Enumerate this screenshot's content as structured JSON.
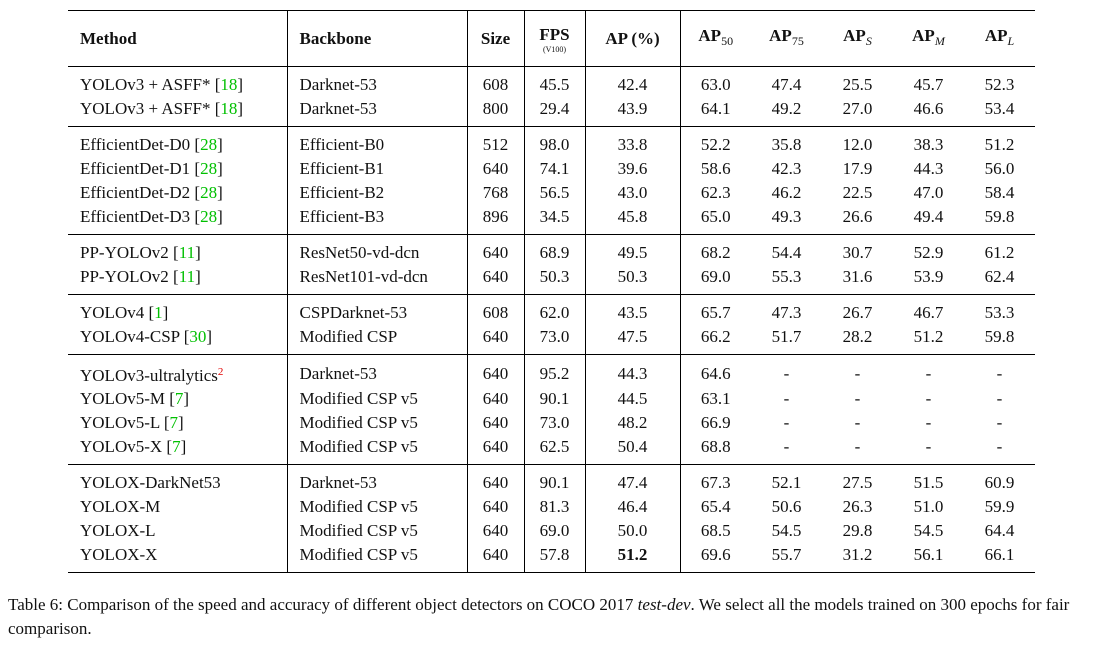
{
  "table": {
    "header": [
      {
        "text": "Method"
      },
      {
        "text": "Backbone"
      },
      {
        "text": "Size"
      },
      {
        "text": "FPS",
        "note": "(V100)"
      },
      {
        "text": "AP (%)"
      },
      {
        "text": "AP",
        "sub": "50"
      },
      {
        "text": "AP",
        "sub": "75"
      },
      {
        "text": "AP",
        "sub": "S",
        "sub_italic": true
      },
      {
        "text": "AP",
        "sub": "M",
        "sub_italic": true
      },
      {
        "text": "AP",
        "sub": "L",
        "sub_italic": true
      }
    ],
    "groups": [
      [
        {
          "method": [
            {
              "text": "YOLOv3 + ASFF* ["
            },
            {
              "text": "18",
              "kind": "cite"
            },
            {
              "text": "]"
            }
          ],
          "cells": [
            "Darknet-53",
            "608",
            "45.5",
            "42.4",
            "63.0",
            "47.4",
            "25.5",
            "45.7",
            "52.3"
          ]
        },
        {
          "method": [
            {
              "text": "YOLOv3 + ASFF* ["
            },
            {
              "text": "18",
              "kind": "cite"
            },
            {
              "text": "]"
            }
          ],
          "cells": [
            "Darknet-53",
            "800",
            "29.4",
            "43.9",
            "64.1",
            "49.2",
            "27.0",
            "46.6",
            "53.4"
          ]
        }
      ],
      [
        {
          "method": [
            {
              "text": "EfficientDet-D0 ["
            },
            {
              "text": "28",
              "kind": "cite"
            },
            {
              "text": "]"
            }
          ],
          "cells": [
            "Efficient-B0",
            "512",
            "98.0",
            "33.8",
            "52.2",
            "35.8",
            "12.0",
            "38.3",
            "51.2"
          ]
        },
        {
          "method": [
            {
              "text": "EfficientDet-D1 ["
            },
            {
              "text": "28",
              "kind": "cite"
            },
            {
              "text": "]"
            }
          ],
          "cells": [
            "Efficient-B1",
            "640",
            "74.1",
            "39.6",
            "58.6",
            "42.3",
            "17.9",
            "44.3",
            "56.0"
          ]
        },
        {
          "method": [
            {
              "text": "EfficientDet-D2 ["
            },
            {
              "text": "28",
              "kind": "cite"
            },
            {
              "text": "]"
            }
          ],
          "cells": [
            "Efficient-B2",
            "768",
            "56.5",
            "43.0",
            "62.3",
            "46.2",
            "22.5",
            "47.0",
            "58.4"
          ]
        },
        {
          "method": [
            {
              "text": "EfficientDet-D3 ["
            },
            {
              "text": "28",
              "kind": "cite"
            },
            {
              "text": "]"
            }
          ],
          "cells": [
            "Efficient-B3",
            "896",
            "34.5",
            "45.8",
            "65.0",
            "49.3",
            "26.6",
            "49.4",
            "59.8"
          ]
        }
      ],
      [
        {
          "method": [
            {
              "text": "PP-YOLOv2 ["
            },
            {
              "text": "11",
              "kind": "cite"
            },
            {
              "text": "]"
            }
          ],
          "cells": [
            "ResNet50-vd-dcn",
            "640",
            "68.9",
            "49.5",
            "68.2",
            "54.4",
            "30.7",
            "52.9",
            "61.2"
          ]
        },
        {
          "method": [
            {
              "text": "PP-YOLOv2 ["
            },
            {
              "text": "11",
              "kind": "cite"
            },
            {
              "text": "]"
            }
          ],
          "cells": [
            "ResNet101-vd-dcn",
            "640",
            "50.3",
            "50.3",
            "69.0",
            "55.3",
            "31.6",
            "53.9",
            "62.4"
          ]
        }
      ],
      [
        {
          "method": [
            {
              "text": "YOLOv4 ["
            },
            {
              "text": "1",
              "kind": "cite"
            },
            {
              "text": "]"
            }
          ],
          "cells": [
            "CSPDarknet-53",
            "608",
            "62.0",
            "43.5",
            "65.7",
            "47.3",
            "26.7",
            "46.7",
            "53.3"
          ]
        },
        {
          "method": [
            {
              "text": "YOLOv4-CSP ["
            },
            {
              "text": "30",
              "kind": "cite"
            },
            {
              "text": "]"
            }
          ],
          "cells": [
            "Modified CSP",
            "640",
            "73.0",
            "47.5",
            "66.2",
            "51.7",
            "28.2",
            "51.2",
            "59.8"
          ]
        }
      ],
      [
        {
          "method": [
            {
              "text": "YOLOv3-ultralytics"
            },
            {
              "text": "2",
              "kind": "note"
            }
          ],
          "cells": [
            "Darknet-53",
            "640",
            "95.2",
            "44.3",
            "64.6",
            "-",
            "-",
            "-",
            "-"
          ]
        },
        {
          "method": [
            {
              "text": "YOLOv5-M ["
            },
            {
              "text": "7",
              "kind": "cite"
            },
            {
              "text": "]"
            }
          ],
          "cells": [
            "Modified CSP v5",
            "640",
            "90.1",
            "44.5",
            "63.1",
            "-",
            "-",
            "-",
            "-"
          ]
        },
        {
          "method": [
            {
              "text": "YOLOv5-L ["
            },
            {
              "text": "7",
              "kind": "cite"
            },
            {
              "text": "]"
            }
          ],
          "cells": [
            "Modified CSP v5",
            "640",
            "73.0",
            "48.2",
            "66.9",
            "-",
            "-",
            "-",
            "-"
          ]
        },
        {
          "method": [
            {
              "text": "YOLOv5-X ["
            },
            {
              "text": "7",
              "kind": "cite"
            },
            {
              "text": "]"
            }
          ],
          "cells": [
            "Modified CSP v5",
            "640",
            "62.5",
            "50.4",
            "68.8",
            "-",
            "-",
            "-",
            "-"
          ]
        }
      ],
      [
        {
          "method": [
            {
              "text": "YOLOX-DarkNet53"
            }
          ],
          "cells": [
            "Darknet-53",
            "640",
            "90.1",
            "47.4",
            "67.3",
            "52.1",
            "27.5",
            "51.5",
            "60.9"
          ]
        },
        {
          "method": [
            {
              "text": "YOLOX-M"
            }
          ],
          "cells": [
            "Modified CSP v5",
            "640",
            "81.3",
            "46.4",
            "65.4",
            "50.6",
            "26.3",
            "51.0",
            "59.9"
          ]
        },
        {
          "method": [
            {
              "text": "YOLOX-L"
            }
          ],
          "cells": [
            "Modified CSP v5",
            "640",
            "69.0",
            "50.0",
            "68.5",
            "54.5",
            "29.8",
            "54.5",
            "64.4"
          ]
        },
        {
          "method": [
            {
              "text": "YOLOX-X"
            }
          ],
          "cells": [
            "Modified CSP v5",
            "640",
            "57.8",
            {
              "text": "51.2",
              "bold": true
            },
            "69.6",
            "55.7",
            "31.2",
            "56.1",
            "66.1"
          ]
        }
      ]
    ]
  },
  "caption": [
    {
      "text": "Table 6: Comparison of the speed and accuracy of different object detectors on COCO 2017 "
    },
    {
      "text": "test-dev",
      "italic": true
    },
    {
      "text": ". We select all the models trained on 300 epochs for fair comparison."
    }
  ]
}
